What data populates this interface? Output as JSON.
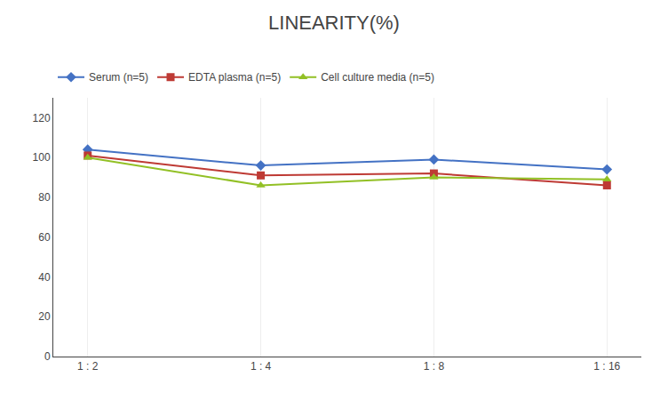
{
  "chart_data": {
    "type": "line",
    "title": "LINEARITY(%)",
    "categories": [
      "1 : 2",
      "1 : 4",
      "1 : 8",
      "1 : 16"
    ],
    "series": [
      {
        "name": "Serum (n=5)",
        "color": "#4472C4",
        "marker": "diamond",
        "values": [
          104,
          96,
          99,
          94
        ]
      },
      {
        "name": "EDTA plasma (n=5)",
        "color": "#BE3A34",
        "marker": "square",
        "values": [
          101,
          91,
          92,
          86
        ]
      },
      {
        "name": "Cell culture media (n=5)",
        "color": "#92C025",
        "marker": "triangle-up",
        "values": [
          100,
          86,
          90,
          89
        ]
      }
    ],
    "ylim": [
      0,
      130
    ],
    "yticks": [
      0,
      20,
      40,
      60,
      80,
      100,
      120
    ],
    "grid": "x",
    "legend": "top"
  }
}
